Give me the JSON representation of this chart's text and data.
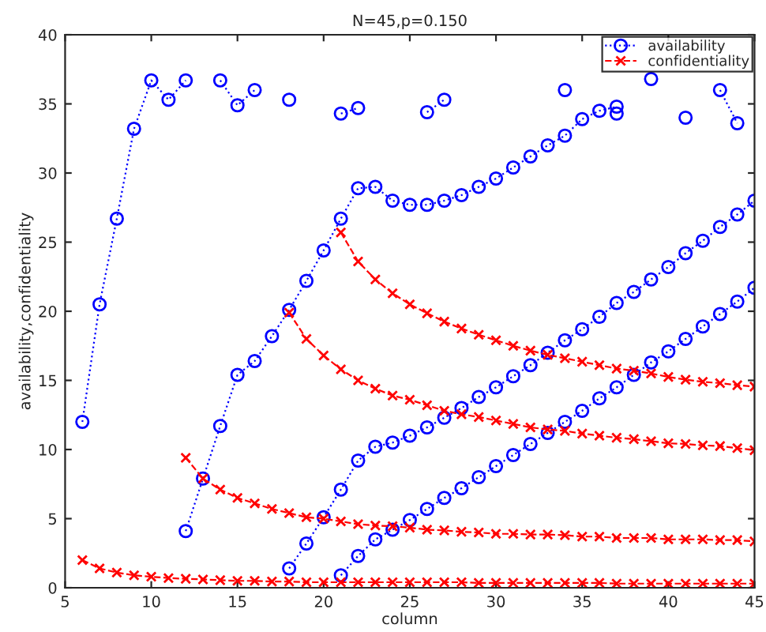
{
  "chart_data": {
    "type": "line",
    "title": "N=45,p=0.150",
    "xlabel": "column",
    "ylabel": "availability,confidentiality",
    "xlim": [
      5,
      45
    ],
    "xticks": [
      5,
      10,
      15,
      20,
      25,
      30,
      35,
      40,
      45
    ],
    "ylim": [
      0,
      40
    ],
    "yticks": [
      0,
      5,
      10,
      15,
      20,
      25,
      30,
      35,
      40
    ],
    "grid": false,
    "legend": "top right",
    "series": [
      {
        "name": "availability",
        "color": "#0000ff",
        "marker": "circle",
        "line_style": "dotted",
        "x": [
          6,
          7,
          8,
          9,
          10,
          11,
          12,
          13,
          14,
          15,
          16,
          17,
          18,
          19,
          20,
          21,
          22,
          23,
          24,
          25,
          26,
          27,
          28,
          29,
          30,
          31,
          32,
          33,
          34,
          35,
          36,
          37,
          38,
          39,
          40,
          41,
          42,
          43,
          44
        ],
        "values": [
          12.0,
          20.5,
          26.7,
          33.2,
          36.7,
          35.3,
          36.7,
          null,
          36.7,
          34.9,
          36.0,
          null,
          35.3,
          null,
          null,
          34.3,
          34.7,
          null,
          null,
          null,
          34.4,
          35.3,
          null,
          null,
          null,
          null,
          null,
          null,
          36.0,
          null,
          null,
          34.3,
          null,
          36.8,
          null,
          34.0,
          null,
          36.0,
          33.6
        ]
      },
      {
        "color": "#0000ff",
        "marker": "circle",
        "line_style": "dotted",
        "x": [
          12,
          13,
          14,
          15,
          16,
          17,
          18,
          19,
          20,
          21,
          22,
          23,
          24,
          25,
          26,
          27,
          28,
          29,
          30,
          31,
          32,
          33,
          34,
          35,
          36,
          37
        ],
        "values": [
          4.1,
          7.9,
          11.7,
          15.4,
          16.4,
          18.2,
          20.1,
          22.2,
          24.4,
          26.7,
          28.9,
          29.0,
          28.0,
          27.7,
          27.7,
          28.0,
          28.4,
          29.0,
          29.6,
          30.4,
          31.2,
          32.0,
          32.7,
          33.9,
          34.5,
          34.8
        ]
      },
      {
        "color": "#0000ff",
        "marker": "circle",
        "line_style": "dotted",
        "x": [
          18,
          19,
          20,
          21,
          22,
          23,
          24,
          25,
          26,
          27,
          28,
          29,
          30,
          31,
          32,
          33,
          34,
          35,
          36,
          37,
          38,
          39,
          40,
          41,
          42,
          43,
          44,
          45
        ],
        "values": [
          1.4,
          3.2,
          5.1,
          7.1,
          9.2,
          10.2,
          10.5,
          11.0,
          11.6,
          12.3,
          13.0,
          13.8,
          14.5,
          15.3,
          16.1,
          17.0,
          17.9,
          18.7,
          19.6,
          20.6,
          21.4,
          22.3,
          23.2,
          24.2,
          25.1,
          26.1,
          27.0,
          28.0
        ]
      },
      {
        "color": "#0000ff",
        "marker": "circle",
        "line_style": "dotted",
        "x": [
          21,
          22,
          23,
          24,
          25,
          26,
          27,
          28,
          29,
          30,
          31,
          32,
          33,
          34,
          35,
          36,
          37,
          38,
          39,
          40,
          41,
          42,
          43,
          44,
          45
        ],
        "values": [
          0.9,
          2.3,
          3.5,
          4.2,
          4.9,
          5.7,
          6.5,
          7.2,
          8.0,
          8.8,
          9.6,
          10.4,
          11.2,
          12.0,
          12.8,
          13.7,
          14.5,
          15.4,
          16.3,
          17.1,
          18.0,
          18.9,
          19.8,
          20.7,
          21.7
        ]
      },
      {
        "name": "confidentiality",
        "color": "#ff0000",
        "marker": "cross",
        "line_style": "dashed",
        "x": [
          6,
          7,
          8,
          9,
          10,
          11,
          12,
          13,
          14,
          15,
          16,
          17,
          18,
          19,
          20,
          21,
          22,
          23,
          24,
          25,
          26,
          27,
          28,
          29,
          30,
          31,
          32,
          33,
          34,
          35,
          36,
          37,
          38,
          39,
          40,
          41,
          42,
          43,
          44,
          45
        ],
        "values": [
          2.0,
          1.4,
          1.1,
          0.9,
          0.8,
          0.7,
          0.65,
          0.6,
          0.55,
          0.5,
          0.5,
          0.45,
          0.45,
          0.4,
          0.4,
          0.4,
          0.4,
          0.4,
          0.4,
          0.4,
          0.4,
          0.4,
          0.4,
          0.35,
          0.35,
          0.35,
          0.35,
          0.35,
          0.35,
          0.35,
          0.35,
          0.3,
          0.3,
          0.3,
          0.3,
          0.3,
          0.3,
          0.3,
          0.3,
          0.3
        ]
      },
      {
        "color": "#ff0000",
        "marker": "cross",
        "line_style": "dashed",
        "x": [
          12,
          13,
          14,
          15,
          16,
          17,
          18,
          19,
          20,
          21,
          22,
          23,
          24,
          25,
          26,
          27,
          28,
          29,
          30,
          31,
          32,
          33,
          34,
          35,
          36,
          37,
          38,
          39,
          40,
          41,
          42,
          43,
          44,
          45
        ],
        "values": [
          9.4,
          7.9,
          7.1,
          6.5,
          6.1,
          5.7,
          5.4,
          5.1,
          5.0,
          4.8,
          4.6,
          4.5,
          4.45,
          4.35,
          4.2,
          4.15,
          4.05,
          4.0,
          3.9,
          3.9,
          3.85,
          3.85,
          3.8,
          3.7,
          3.7,
          3.6,
          3.6,
          3.6,
          3.5,
          3.5,
          3.5,
          3.45,
          3.45,
          3.35
        ]
      },
      {
        "color": "#ff0000",
        "marker": "cross",
        "line_style": "dashed",
        "x": [
          18,
          19,
          20,
          21,
          22,
          23,
          24,
          25,
          26,
          27,
          28,
          29,
          30,
          31,
          32,
          33,
          34,
          35,
          36,
          37,
          38,
          39,
          40,
          41,
          42,
          43,
          44,
          45
        ],
        "values": [
          19.9,
          18.0,
          16.8,
          15.8,
          15.0,
          14.4,
          13.9,
          13.6,
          13.2,
          12.8,
          12.55,
          12.35,
          12.1,
          11.85,
          11.6,
          11.45,
          11.35,
          11.15,
          11.0,
          10.85,
          10.75,
          10.6,
          10.45,
          10.4,
          10.3,
          10.25,
          10.1,
          9.95
        ]
      },
      {
        "color": "#ff0000",
        "marker": "cross",
        "line_style": "dashed",
        "x": [
          21,
          22,
          23,
          24,
          25,
          26,
          27,
          28,
          29,
          30,
          31,
          32,
          33,
          34,
          35,
          36,
          37,
          38,
          39,
          40,
          41,
          42,
          43,
          44,
          45
        ],
        "values": [
          25.7,
          23.6,
          22.3,
          21.3,
          20.5,
          19.85,
          19.25,
          18.75,
          18.3,
          17.9,
          17.5,
          17.15,
          16.85,
          16.6,
          16.35,
          16.1,
          15.85,
          15.7,
          15.5,
          15.25,
          15.05,
          14.9,
          14.8,
          14.65,
          14.55
        ]
      }
    ]
  }
}
